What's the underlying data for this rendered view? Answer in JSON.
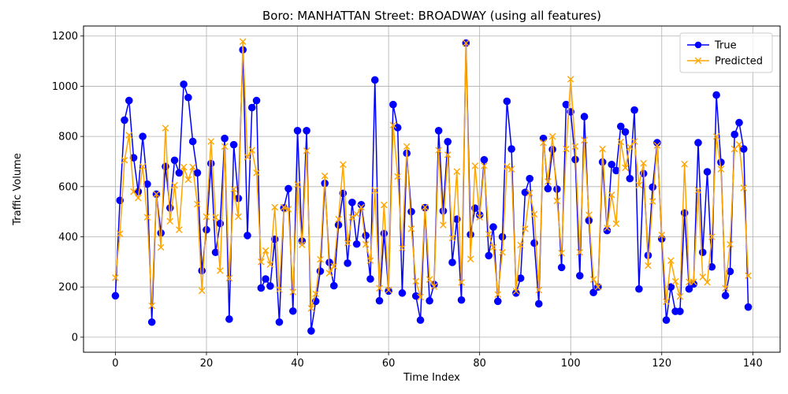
{
  "chart_data": {
    "type": "line",
    "title": "Boro: MANHATTAN Street: BROADWAY (using all features)",
    "xlabel": "Time Index",
    "ylabel": "Traffic Volume",
    "xlim": [
      -7,
      146
    ],
    "ylim": [
      -60,
      1240
    ],
    "x_ticks": [
      0,
      20,
      40,
      60,
      80,
      100,
      120,
      140
    ],
    "y_ticks": [
      0,
      200,
      400,
      600,
      800,
      1000,
      1200
    ],
    "grid": true,
    "legend_position": "top-right",
    "series": [
      {
        "name": "True",
        "color": "#0000ff",
        "marker": "circle",
        "values": [
          165,
          545,
          865,
          943,
          715,
          580,
          800,
          610,
          60,
          570,
          415,
          680,
          515,
          705,
          655,
          1008,
          955,
          780,
          655,
          265,
          428,
          692,
          338,
          453,
          792,
          72,
          767,
          553,
          1145,
          405,
          915,
          943,
          196,
          232,
          204,
          390,
          60,
          515,
          592,
          104,
          823,
          383,
          823,
          25,
          143,
          263,
          613,
          298,
          205,
          447,
          573,
          295,
          537,
          371,
          528,
          405,
          232,
          1025,
          145,
          413,
          184,
          927,
          835,
          176,
          733,
          500,
          164,
          68,
          516,
          145,
          210,
          823,
          503,
          779,
          298,
          470,
          148,
          1172,
          409,
          514,
          487,
          707,
          325,
          439,
          143,
          400,
          940,
          750,
          176,
          235,
          577,
          632,
          375,
          133,
          792,
          592,
          748,
          590,
          278,
          927,
          898,
          708,
          245,
          879,
          465,
          178,
          200,
          698,
          425,
          688,
          664,
          840,
          818,
          632,
          905,
          192,
          652,
          326,
          598,
          775,
          392,
          68,
          200,
          103,
          103,
          495,
          192,
          212,
          775,
          338,
          659,
          280,
          965,
          697,
          166,
          262,
          808,
          855,
          750,
          120
        ]
      },
      {
        "name": "Predicted",
        "color": "#ffa500",
        "marker": "x",
        "values": [
          237,
          412,
          705,
          805,
          580,
          555,
          680,
          478,
          125,
          570,
          358,
          833,
          462,
          605,
          428,
          678,
          628,
          678,
          530,
          185,
          480,
          780,
          478,
          265,
          760,
          235,
          590,
          480,
          1178,
          718,
          745,
          655,
          300,
          345,
          290,
          518,
          190,
          518,
          510,
          180,
          608,
          368,
          743,
          115,
          173,
          310,
          643,
          255,
          283,
          470,
          688,
          375,
          478,
          490,
          518,
          370,
          305,
          585,
          195,
          527,
          188,
          845,
          640,
          355,
          760,
          432,
          223,
          160,
          518,
          230,
          202,
          745,
          447,
          727,
          395,
          660,
          218,
          1172,
          311,
          683,
          478,
          683,
          410,
          358,
          170,
          338,
          680,
          670,
          183,
          367,
          432,
          575,
          490,
          188,
          775,
          620,
          800,
          543,
          335,
          750,
          1028,
          760,
          338,
          785,
          487,
          230,
          200,
          750,
          435,
          567,
          452,
          778,
          675,
          758,
          780,
          606,
          693,
          285,
          541,
          764,
          407,
          142,
          305,
          222,
          162,
          690,
          220,
          220,
          585,
          240,
          219,
          400,
          800,
          670,
          195,
          370,
          750,
          768,
          595,
          245
        ]
      }
    ]
  }
}
